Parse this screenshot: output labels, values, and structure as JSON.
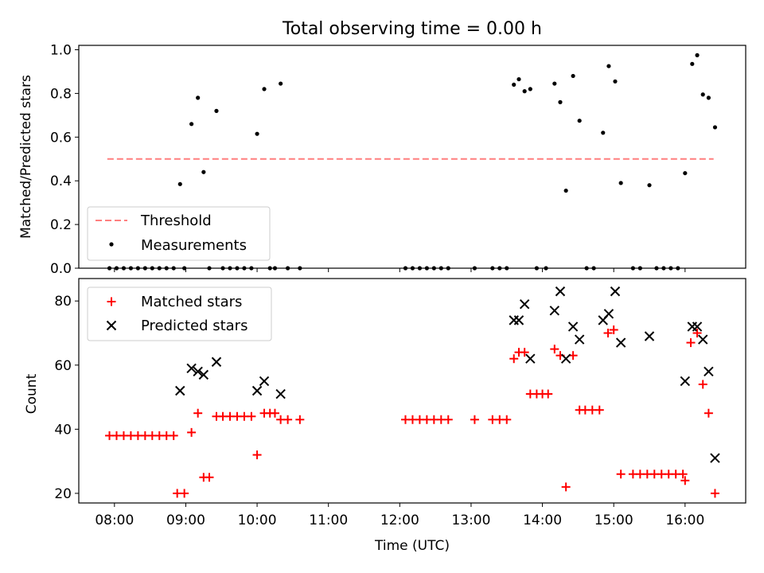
{
  "title": "Total observing time = 0.00 h",
  "chart_data": [
    {
      "type": "scatter",
      "ylabel": "Matched/Predicted stars",
      "xlim": [
        7.5,
        16.85
      ],
      "ylim": [
        0,
        1.02
      ],
      "yticks": [
        0.0,
        0.2,
        0.4,
        0.6,
        0.8,
        1.0
      ],
      "ytick_labels": [
        "0.0",
        "0.2",
        "0.4",
        "0.6",
        "0.8",
        "1.0"
      ],
      "legend_position": "lower-left",
      "threshold": {
        "name": "Threshold",
        "y": 0.5,
        "x_range": [
          7.9,
          16.4
        ],
        "color": "#ff7f7f"
      },
      "series": [
        {
          "name": "Measurements",
          "color": "#000000",
          "x": [
            7.93,
            8.03,
            8.13,
            8.23,
            8.33,
            8.43,
            8.53,
            8.63,
            8.73,
            8.83,
            8.92,
            8.98,
            9.08,
            9.17,
            9.25,
            9.33,
            9.43,
            9.52,
            9.62,
            9.72,
            9.82,
            9.92,
            10.0,
            10.1,
            10.18,
            10.25,
            10.33,
            10.43,
            10.6,
            12.08,
            12.18,
            12.28,
            12.38,
            12.48,
            12.58,
            12.68,
            13.05,
            13.3,
            13.4,
            13.5,
            13.6,
            13.67,
            13.75,
            13.83,
            13.92,
            14.05,
            14.17,
            14.25,
            14.33,
            14.43,
            14.52,
            14.62,
            14.72,
            14.85,
            14.93,
            15.02,
            15.1,
            15.27,
            15.37,
            15.5,
            15.6,
            15.7,
            15.8,
            15.9,
            16.0,
            16.1,
            16.17,
            16.25,
            16.33,
            16.42
          ],
          "y": [
            0,
            0,
            0,
            0,
            0,
            0,
            0,
            0,
            0,
            0,
            0.385,
            0,
            0.66,
            0.78,
            0.44,
            0,
            0.72,
            0,
            0,
            0,
            0,
            0,
            0.615,
            0.82,
            0,
            0,
            0.845,
            0,
            0,
            0,
            0,
            0,
            0,
            0,
            0,
            0,
            0,
            0,
            0,
            0,
            0.84,
            0.865,
            0.81,
            0.82,
            0,
            0,
            0.845,
            0.76,
            0.355,
            0.88,
            0.675,
            0,
            0,
            0.62,
            0.925,
            0.855,
            0.39,
            0,
            0,
            0.38,
            0,
            0,
            0,
            0,
            0.435,
            0.935,
            0.975,
            0.795,
            0.78,
            0.645
          ]
        }
      ]
    },
    {
      "type": "scatter",
      "xlabel": "Time (UTC)",
      "ylabel": "Count",
      "xlim": [
        7.5,
        16.85
      ],
      "ylim": [
        17,
        87
      ],
      "yticks": [
        20,
        40,
        60,
        80
      ],
      "ytick_labels": [
        "20",
        "40",
        "60",
        "80"
      ],
      "xticks": [
        8,
        9,
        10,
        11,
        12,
        13,
        14,
        15,
        16
      ],
      "xtick_labels": [
        "08:00",
        "09:00",
        "10:00",
        "11:00",
        "12:00",
        "13:00",
        "14:00",
        "15:00",
        "16:00"
      ],
      "legend_position": "upper-left",
      "series": [
        {
          "name": "Matched stars",
          "color": "#ff0000",
          "marker": "plus",
          "x": [
            7.93,
            8.03,
            8.13,
            8.23,
            8.33,
            8.43,
            8.53,
            8.63,
            8.73,
            8.83,
            8.88,
            8.98,
            9.08,
            9.17,
            9.25,
            9.33,
            9.43,
            9.52,
            9.62,
            9.72,
            9.82,
            9.92,
            10.0,
            10.1,
            10.18,
            10.25,
            10.33,
            10.43,
            10.6,
            12.08,
            12.18,
            12.28,
            12.38,
            12.48,
            12.58,
            12.68,
            13.05,
            13.3,
            13.4,
            13.5,
            13.6,
            13.67,
            13.75,
            13.83,
            13.92,
            14.0,
            14.08,
            14.17,
            14.25,
            14.33,
            14.43,
            14.52,
            14.6,
            14.7,
            14.8,
            14.92,
            15.0,
            15.1,
            15.27,
            15.37,
            15.47,
            15.57,
            15.67,
            15.77,
            15.87,
            15.97,
            16.0,
            16.08,
            16.17,
            16.25,
            16.33,
            16.42
          ],
          "y": [
            38,
            38,
            38,
            38,
            38,
            38,
            38,
            38,
            38,
            38,
            20,
            20,
            39,
            45,
            25,
            25,
            44,
            44,
            44,
            44,
            44,
            44,
            32,
            45,
            45,
            45,
            43,
            43,
            43,
            43,
            43,
            43,
            43,
            43,
            43,
            43,
            43,
            43,
            43,
            43,
            62,
            64,
            64,
            51,
            51,
            51,
            51,
            65,
            63,
            22,
            63,
            46,
            46,
            46,
            46,
            70,
            71,
            26,
            26,
            26,
            26,
            26,
            26,
            26,
            26,
            26,
            24,
            67,
            70,
            54,
            45,
            20
          ]
        },
        {
          "name": "Predicted stars",
          "color": "#000000",
          "marker": "x",
          "x": [
            8.92,
            9.08,
            9.17,
            9.25,
            9.43,
            10.0,
            10.1,
            10.33,
            13.6,
            13.67,
            13.75,
            13.83,
            14.17,
            14.25,
            14.33,
            14.43,
            14.52,
            14.85,
            14.93,
            15.02,
            15.1,
            15.5,
            16.0,
            16.1,
            16.17,
            16.25,
            16.33,
            16.42
          ],
          "y": [
            52,
            59,
            58,
            57,
            61,
            52,
            55,
            51,
            74,
            74,
            79,
            62,
            77,
            83,
            62,
            72,
            68,
            74,
            76,
            83,
            67,
            69,
            55,
            72,
            72,
            68,
            58,
            31
          ]
        }
      ]
    }
  ]
}
